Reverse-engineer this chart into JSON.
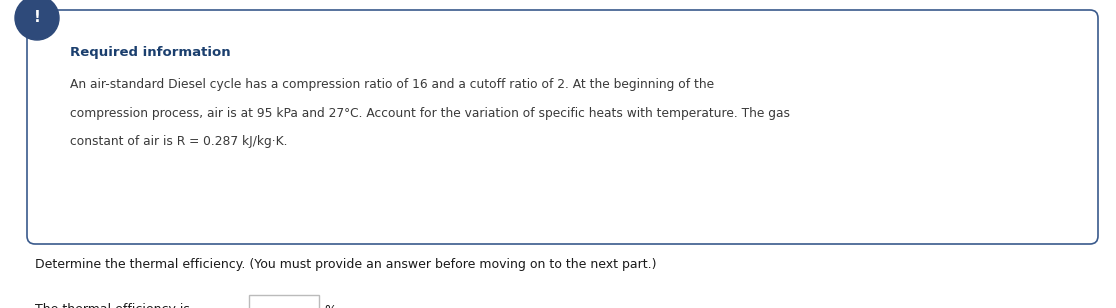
{
  "required_info_title": "Required information",
  "required_info_body_line1": "An air-standard Diesel cycle has a compression ratio of 16 and a cutoff ratio of 2. At the beginning of the",
  "required_info_body_line2": "compression process, air is at 95 kPa and 27°C. Account for the variation of specific heats with temperature. The gas",
  "required_info_body_line3": "constant of air is R = 0.287 kJ/kg·K.",
  "question_text": "Determine the thermal efficiency. (You must provide an answer before moving on to the next part.)",
  "answer_label": "The thermal efficiency is",
  "answer_suffix": "%.",
  "box_border_color": "#3a5a8c",
  "box_bg_color": "#FFFFFF",
  "title_color": "#1B3F6E",
  "body_color": "#3a3a3a",
  "icon_bg_color": "#2E4A7A",
  "icon_text_color": "#FFFFFF",
  "question_color": "#1a1a1a",
  "answer_color": "#1a1a1a",
  "input_box_color": "#bbbbbb",
  "fig_bg_color": "#FFFFFF",
  "fig_width": 11.16,
  "fig_height": 3.08,
  "dpi": 100
}
